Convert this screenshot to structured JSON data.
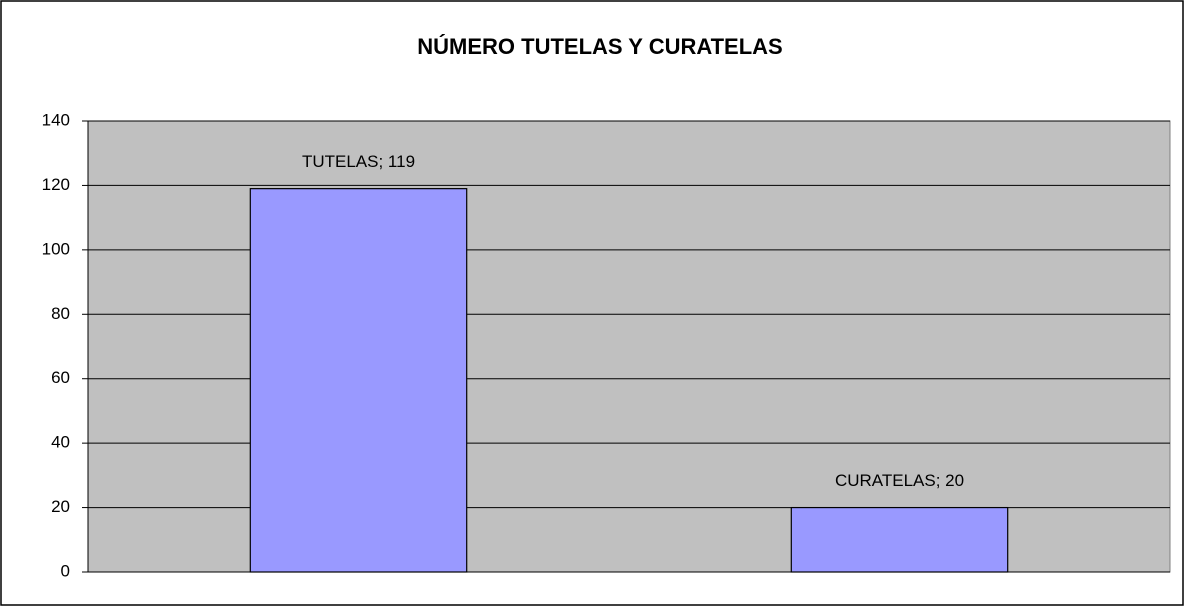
{
  "chart_data": {
    "type": "bar",
    "title": "NÚMERO TUTELAS Y CURATELAS",
    "values": [
      119,
      20
    ],
    "value_labels": [
      "TUTELAS; 119",
      "CURATELAS; 20"
    ],
    "color": "#9999ff",
    "ylim": [
      0,
      140
    ],
    "yticks": [
      0,
      20,
      40,
      60,
      80,
      100,
      120,
      140
    ],
    "grid": true
  }
}
